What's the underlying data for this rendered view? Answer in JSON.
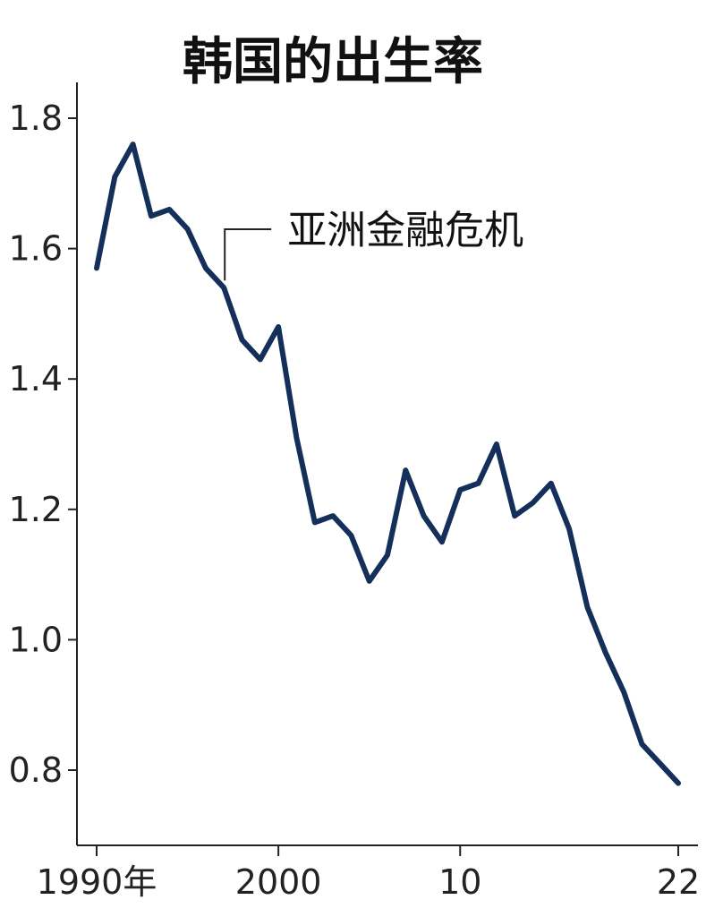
{
  "chart_data": {
    "type": "line",
    "title": "韩国的出生率",
    "xlabel": "",
    "ylabel": "",
    "x": [
      1990,
      1991,
      1992,
      1993,
      1994,
      1995,
      1996,
      1997,
      1998,
      1999,
      2000,
      2001,
      2002,
      2003,
      2004,
      2005,
      2006,
      2007,
      2008,
      2009,
      2010,
      2011,
      2012,
      2013,
      2014,
      2015,
      2016,
      2017,
      2018,
      2019,
      2020,
      2021,
      2022
    ],
    "series": [
      {
        "values": [
          1.57,
          1.71,
          1.76,
          1.65,
          1.66,
          1.63,
          1.57,
          1.54,
          1.46,
          1.43,
          1.48,
          1.31,
          1.18,
          1.19,
          1.16,
          1.09,
          1.13,
          1.26,
          1.19,
          1.15,
          1.23,
          1.24,
          1.3,
          1.19,
          1.21,
          1.24,
          1.17,
          1.05,
          0.98,
          0.92,
          0.84,
          0.81,
          0.78
        ]
      }
    ],
    "xlim": [
      1990,
      2022
    ],
    "ylim": [
      0.7,
      1.85
    ],
    "x_ticks": [
      {
        "value": 1990,
        "label": "1990年"
      },
      {
        "value": 2000,
        "label": "2000"
      },
      {
        "value": 2010,
        "label": "10"
      },
      {
        "value": 2022,
        "label": "22"
      }
    ],
    "y_ticks": [
      {
        "value": 0.8,
        "label": "0.8"
      },
      {
        "value": 1.0,
        "label": "1.0"
      },
      {
        "value": 1.2,
        "label": "1.2"
      },
      {
        "value": 1.4,
        "label": "1.4"
      },
      {
        "value": 1.6,
        "label": "1.6"
      },
      {
        "value": 1.8,
        "label": "1.8"
      }
    ],
    "grid": false,
    "line_color": "#14305a",
    "annotations": [
      {
        "x": 1997,
        "y": 1.54,
        "text": "亚洲金融危机"
      }
    ]
  }
}
